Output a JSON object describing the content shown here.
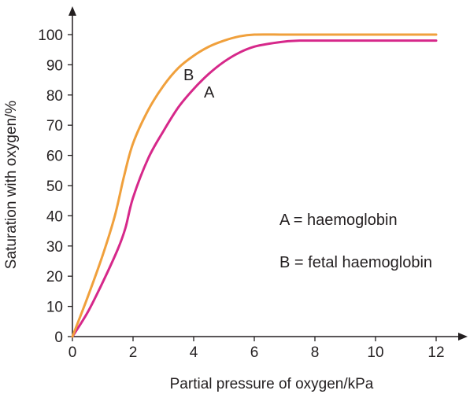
{
  "chart_data": {
    "type": "line",
    "title": "",
    "xlabel": "Partial pressure of oxygen/kPa",
    "ylabel": "Saturation with oxygen/%",
    "xlim": [
      0,
      12
    ],
    "ylim": [
      0,
      100
    ],
    "x_ticks": [
      "0",
      "2",
      "4",
      "6",
      "8",
      "10",
      "12"
    ],
    "y_ticks": [
      "0",
      "10",
      "20",
      "30",
      "40",
      "50",
      "60",
      "70",
      "80",
      "90",
      "100"
    ],
    "grid": false,
    "series": [
      {
        "name": "A",
        "color": "#d6288a",
        "points": [
          [
            0,
            0
          ],
          [
            0.5,
            8
          ],
          [
            1,
            18
          ],
          [
            1.5,
            29
          ],
          [
            1.75,
            36
          ],
          [
            2,
            46
          ],
          [
            2.5,
            59
          ],
          [
            3,
            68
          ],
          [
            3.5,
            76
          ],
          [
            4,
            82
          ],
          [
            4.5,
            87
          ],
          [
            5,
            91
          ],
          [
            5.5,
            94
          ],
          [
            6,
            96
          ],
          [
            6.5,
            97
          ],
          [
            7,
            97.7
          ],
          [
            7.5,
            98
          ],
          [
            8,
            98
          ],
          [
            9,
            98
          ],
          [
            10,
            98
          ],
          [
            11,
            98
          ],
          [
            12,
            98
          ]
        ]
      },
      {
        "name": "B",
        "color": "#f0a03c",
        "points": [
          [
            0,
            0
          ],
          [
            0.5,
            13
          ],
          [
            1,
            27
          ],
          [
            1.4,
            40
          ],
          [
            1.7,
            53
          ],
          [
            2,
            64
          ],
          [
            2.5,
            75
          ],
          [
            3,
            83
          ],
          [
            3.5,
            89
          ],
          [
            4,
            93
          ],
          [
            4.5,
            96
          ],
          [
            5,
            98
          ],
          [
            5.5,
            99.4
          ],
          [
            6,
            100
          ],
          [
            7,
            100
          ],
          [
            8,
            100
          ],
          [
            9,
            100
          ],
          [
            10,
            100
          ],
          [
            11,
            100
          ],
          [
            12,
            100
          ]
        ]
      }
    ],
    "curve_labels": {
      "A": "A",
      "B": "B"
    },
    "legend": {
      "placement": "right",
      "entries": [
        "A = haemoglobin",
        "B = fetal haemoglobin"
      ]
    }
  }
}
